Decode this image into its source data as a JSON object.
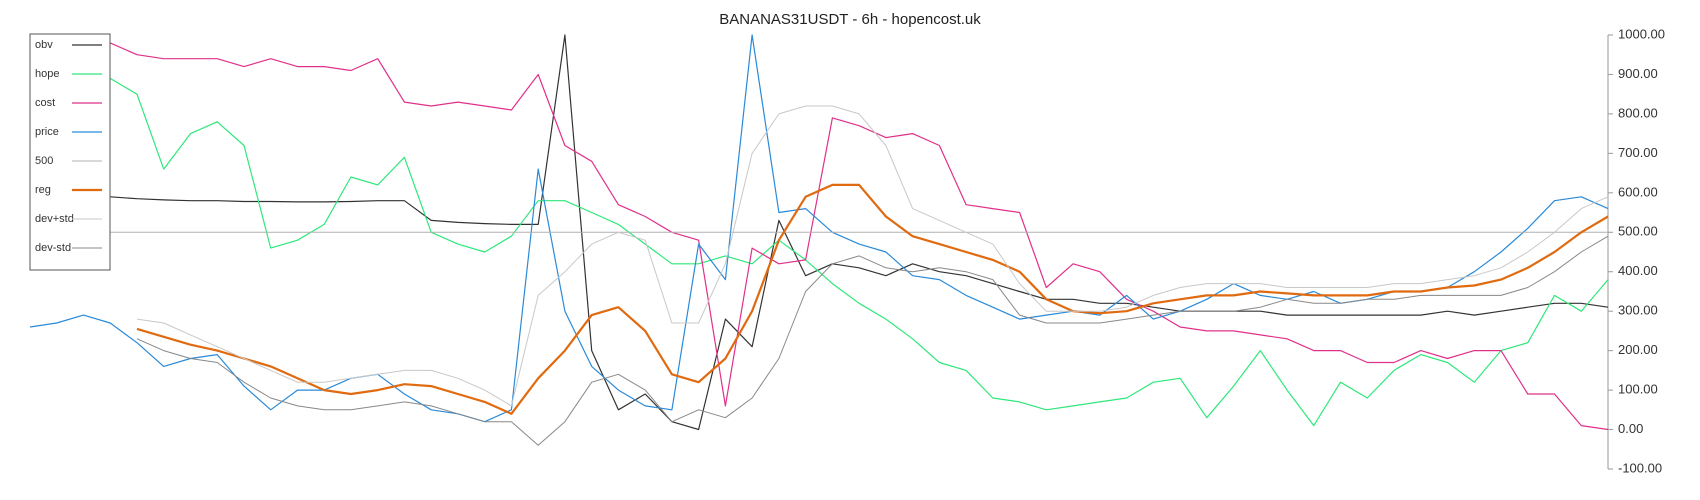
{
  "chart_data": {
    "type": "line",
    "title": "BANANAS31USDT - 6h - hopencost.uk",
    "categories": [
      null,
      null,
      null,
      null,
      null,
      null,
      null,
      null,
      null,
      null,
      null,
      null,
      null,
      null,
      null,
      null,
      null,
      null,
      null,
      null,
      null,
      null,
      null,
      null,
      null,
      null,
      null,
      null,
      null,
      null,
      null,
      null,
      null,
      null,
      null,
      null,
      null,
      null,
      null,
      null,
      null,
      null,
      null,
      null,
      null,
      null,
      null,
      null,
      null,
      null,
      null,
      null,
      null,
      null,
      null,
      null,
      null,
      null,
      null,
      null
    ],
    "ylim": [
      -100,
      1000
    ],
    "yticks": [
      {
        "value": -100,
        "label": "-100.00"
      },
      {
        "value": 0,
        "label": "0.00"
      },
      {
        "value": 100,
        "label": "100.00"
      },
      {
        "value": 200,
        "label": "200.00"
      },
      {
        "value": 300,
        "label": "300.00"
      },
      {
        "value": 400,
        "label": "400.00"
      },
      {
        "value": 500,
        "label": "500.00"
      },
      {
        "value": 600,
        "label": "600.00"
      },
      {
        "value": 700,
        "label": "700.00"
      },
      {
        "value": 800,
        "label": "800.00"
      },
      {
        "value": 900,
        "label": "900.00"
      },
      {
        "value": 1000,
        "label": "1000.00"
      }
    ],
    "legend": "top-left",
    "series": [
      {
        "name": "obv",
        "color": "#333333",
        "width": 1.2,
        "values": [
          null,
          null,
          null,
          590,
          585,
          582,
          580,
          580,
          578,
          578,
          577,
          577,
          578,
          580,
          580,
          530,
          525,
          522,
          520,
          520,
          1000,
          200,
          50,
          90,
          20,
          0,
          280,
          210,
          530,
          390,
          420,
          410,
          390,
          420,
          400,
          390,
          370,
          350,
          330,
          330,
          320,
          320,
          310,
          300,
          300,
          300,
          300,
          290,
          290,
          290,
          290,
          290,
          290,
          300,
          290,
          300,
          310,
          320,
          320,
          310
        ]
      },
      {
        "name": "hope",
        "color": "#2ee87a",
        "width": 1.2,
        "values": [
          null,
          null,
          null,
          890,
          850,
          660,
          750,
          780,
          720,
          460,
          480,
          520,
          640,
          620,
          690,
          500,
          470,
          450,
          490,
          580,
          580,
          550,
          520,
          470,
          420,
          420,
          440,
          420,
          480,
          430,
          370,
          320,
          280,
          230,
          170,
          150,
          80,
          70,
          50,
          60,
          70,
          80,
          120,
          130,
          30,
          110,
          200,
          100,
          10,
          120,
          80,
          150,
          190,
          170,
          120,
          200,
          220,
          340,
          300,
          380
        ]
      },
      {
        "name": "cost",
        "color": "#e0308a",
        "width": 1.2,
        "values": [
          null,
          null,
          null,
          980,
          950,
          940,
          940,
          940,
          920,
          940,
          920,
          920,
          910,
          940,
          830,
          820,
          830,
          820,
          810,
          900,
          720,
          680,
          570,
          540,
          500,
          480,
          60,
          460,
          420,
          430,
          790,
          770,
          740,
          750,
          720,
          570,
          560,
          550,
          360,
          420,
          400,
          330,
          300,
          260,
          250,
          250,
          240,
          230,
          200,
          200,
          170,
          170,
          200,
          180,
          200,
          200,
          90,
          90,
          10,
          0
        ]
      },
      {
        "name": "price",
        "color": "#2a8ad8",
        "width": 1.2,
        "values": [
          260,
          270,
          290,
          270,
          220,
          160,
          180,
          190,
          110,
          50,
          100,
          100,
          130,
          140,
          90,
          50,
          40,
          20,
          50,
          660,
          300,
          160,
          100,
          60,
          50,
          470,
          380,
          1000,
          550,
          560,
          500,
          470,
          450,
          390,
          380,
          340,
          310,
          280,
          290,
          300,
          290,
          340,
          280,
          300,
          330,
          370,
          340,
          330,
          350,
          320,
          330,
          350,
          350,
          360,
          400,
          450,
          510,
          580,
          590,
          560
        ]
      },
      {
        "name": "500",
        "color": "#b0b0b0",
        "width": 1,
        "values": [
          500,
          500,
          500,
          500,
          500,
          500,
          500,
          500,
          500,
          500,
          500,
          500,
          500,
          500,
          500,
          500,
          500,
          500,
          500,
          500,
          500,
          500,
          500,
          500,
          500,
          500,
          500,
          500,
          500,
          500,
          500,
          500,
          500,
          500,
          500,
          500,
          500,
          500,
          500,
          500,
          500,
          500,
          500,
          500,
          500,
          500,
          500,
          500,
          500,
          500,
          500,
          500,
          500,
          500,
          500,
          500,
          500,
          500,
          500,
          500
        ]
      },
      {
        "name": "reg",
        "color": "#e06a10",
        "width": 2.2,
        "values": [
          null,
          null,
          null,
          null,
          255,
          235,
          215,
          200,
          180,
          160,
          130,
          100,
          90,
          100,
          115,
          110,
          90,
          70,
          40,
          130,
          200,
          290,
          310,
          250,
          140,
          120,
          180,
          300,
          480,
          590,
          620,
          620,
          540,
          490,
          470,
          450,
          430,
          400,
          330,
          300,
          295,
          300,
          320,
          330,
          340,
          340,
          350,
          345,
          340,
          340,
          340,
          350,
          350,
          360,
          365,
          380,
          410,
          450,
          500,
          540
        ]
      },
      {
        "name": "dev+std",
        "color": "#c8c8c8",
        "width": 1,
        "values": [
          null,
          null,
          null,
          null,
          280,
          270,
          240,
          210,
          180,
          150,
          120,
          120,
          130,
          140,
          150,
          150,
          130,
          100,
          60,
          340,
          400,
          470,
          500,
          480,
          270,
          270,
          420,
          700,
          800,
          820,
          820,
          800,
          720,
          560,
          530,
          500,
          470,
          370,
          300,
          300,
          300,
          310,
          340,
          360,
          370,
          370,
          370,
          360,
          360,
          360,
          360,
          370,
          370,
          380,
          390,
          410,
          450,
          500,
          560,
          590
        ]
      },
      {
        "name": "dev-std",
        "color": "#888888",
        "width": 1,
        "values": [
          null,
          null,
          null,
          null,
          230,
          200,
          180,
          170,
          120,
          80,
          60,
          50,
          50,
          60,
          70,
          60,
          40,
          20,
          20,
          -40,
          20,
          120,
          140,
          100,
          20,
          50,
          30,
          80,
          180,
          350,
          420,
          440,
          410,
          400,
          410,
          400,
          380,
          290,
          270,
          270,
          270,
          280,
          290,
          300,
          300,
          300,
          310,
          330,
          320,
          320,
          330,
          330,
          340,
          340,
          340,
          340,
          360,
          400,
          450,
          490
        ]
      }
    ]
  }
}
